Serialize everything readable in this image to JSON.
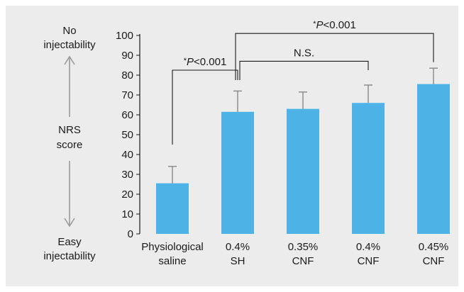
{
  "chart_data": {
    "type": "bar",
    "categories": [
      [
        "Physiological",
        "saline"
      ],
      [
        "0.4%",
        "SH"
      ],
      [
        "0.35%",
        "CNF"
      ],
      [
        "0.4%",
        "CNF"
      ],
      [
        "0.45%",
        "CNF"
      ]
    ],
    "values": [
      25.5,
      61.5,
      63,
      66,
      75.5
    ],
    "errors": [
      8.5,
      10.5,
      8.5,
      9,
      8
    ],
    "ylim": [
      0,
      100
    ],
    "yticks": [
      0,
      10,
      20,
      30,
      40,
      50,
      60,
      70,
      80,
      90,
      100
    ],
    "bar_color": "#4db3e6",
    "error_color": "#888888",
    "side_label": {
      "top": [
        "No",
        "injectability"
      ],
      "middle": [
        "NRS",
        "score"
      ],
      "bottom": [
        "Easy",
        "injectability"
      ]
    },
    "comparisons": [
      {
        "from": 0,
        "to": 1,
        "star": "*",
        "p": "P",
        "rest": "<0.001"
      },
      {
        "from": 1,
        "to": 3,
        "text": "N.S."
      },
      {
        "from": 1,
        "to": 4,
        "star": "*",
        "p": "P",
        "rest": "<0.001"
      }
    ]
  }
}
